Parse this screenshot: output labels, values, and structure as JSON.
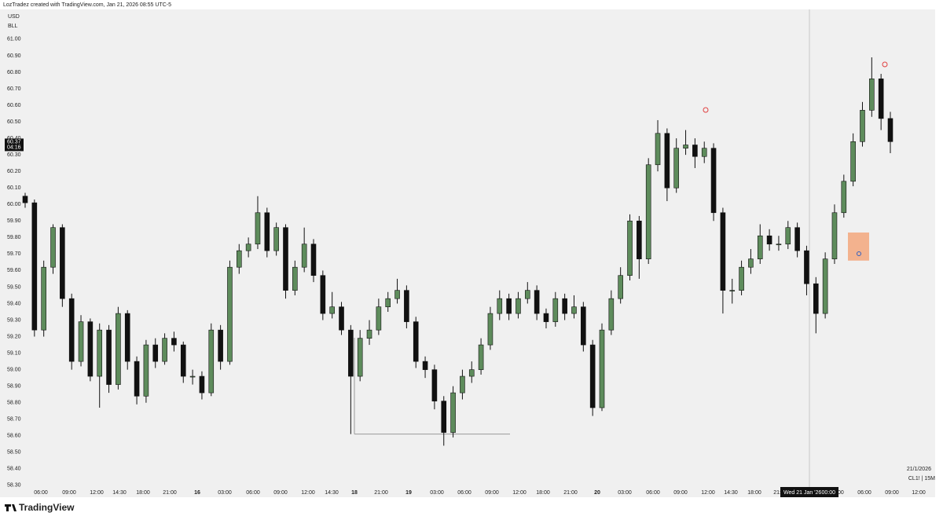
{
  "header": "LozTradez created with TradingView.com, Jan 21, 2026 08:55 UTC-5",
  "logo": "TradingView",
  "chart_data": {
    "type": "candlestick",
    "unit_top": "USD",
    "unit_bottom": "BLL",
    "symbol": "CL1! | 15M",
    "date": "21/1/2026",
    "crosshair_date": "Wed 21 Jan '26",
    "crosshair_time": "00:00",
    "last_price": 60.37,
    "countdown": "04:16",
    "level": 58.61,
    "zone": {
      "low": 59.66,
      "high": 59.83
    },
    "up_color": "#5e8c5c",
    "down_color": "#111111",
    "ylim": [
      58.29,
      61.18
    ],
    "yticks": [
      {
        "value": 58.3,
        "label": "58.30"
      },
      {
        "value": 58.4,
        "label": "58.40"
      },
      {
        "value": 58.5,
        "label": "58.50"
      },
      {
        "value": 58.6,
        "label": "58.60"
      },
      {
        "value": 58.7,
        "label": "58.70"
      },
      {
        "value": 58.8,
        "label": "58.80"
      },
      {
        "value": 58.9,
        "label": "58.90"
      },
      {
        "value": 59,
        "label": "59.00"
      },
      {
        "value": 59.1,
        "label": "59.10"
      },
      {
        "value": 59.2,
        "label": "59.20"
      },
      {
        "value": 59.3,
        "label": "59.30"
      },
      {
        "value": 59.4,
        "label": "59.40"
      },
      {
        "value": 59.5,
        "label": "59.50"
      },
      {
        "value": 59.6,
        "label": "59.60"
      },
      {
        "value": 59.7,
        "label": "59.70"
      },
      {
        "value": 59.8,
        "label": "59.80"
      },
      {
        "value": 59.9,
        "label": "59.90"
      },
      {
        "value": 60,
        "label": "60.00"
      },
      {
        "value": 60.1,
        "label": "60.10"
      },
      {
        "value": 60.2,
        "label": "60.20"
      },
      {
        "value": 60.3,
        "label": "60.30"
      },
      {
        "value": 60.4,
        "label": "60.40"
      },
      {
        "value": 60.5,
        "label": "60.50"
      },
      {
        "value": 60.6,
        "label": "60.60"
      },
      {
        "value": 60.7,
        "label": "60.70"
      },
      {
        "value": 60.8,
        "label": "60.80"
      },
      {
        "value": 60.9,
        "label": "60.90"
      },
      {
        "value": 61,
        "label": "61.00"
      }
    ],
    "time_labels": [
      "06:00",
      "09:00",
      "12:00",
      "14:30",
      "18:00",
      "21:00",
      "16",
      "03:00",
      "06:00",
      "09:00",
      "12:00",
      "14:30",
      "18",
      "21:00",
      "19",
      "03:00",
      "06:00",
      "09:00",
      "12:00",
      "18:00",
      "21:00",
      "20",
      "03:00",
      "06:00",
      "09:00",
      "12:00",
      "14:30",
      "18:00",
      "21:00",
      "03:00",
      "06:00",
      "09:00",
      "12:00"
    ],
    "ohlc": [
      [
        60.05,
        60.07,
        59.98,
        60.01
      ],
      [
        60.01,
        60.03,
        59.2,
        59.24
      ],
      [
        59.24,
        59.66,
        59.2,
        59.62
      ],
      [
        59.62,
        59.88,
        59.58,
        59.86
      ],
      [
        59.86,
        59.88,
        59.38,
        59.43
      ],
      [
        59.43,
        59.46,
        59.0,
        59.05
      ],
      [
        59.05,
        59.33,
        59.02,
        59.29
      ],
      [
        59.29,
        59.31,
        58.93,
        58.96
      ],
      [
        58.96,
        59.28,
        58.77,
        59.24
      ],
      [
        59.24,
        59.27,
        58.86,
        58.91
      ],
      [
        58.91,
        59.38,
        58.88,
        59.34
      ],
      [
        59.34,
        59.36,
        59.0,
        59.05
      ],
      [
        59.05,
        59.08,
        58.79,
        58.84
      ],
      [
        58.84,
        59.18,
        58.8,
        59.15
      ],
      [
        59.15,
        59.19,
        59.01,
        59.05
      ],
      [
        59.05,
        59.22,
        59.03,
        59.19
      ],
      [
        59.19,
        59.23,
        59.11,
        59.15
      ],
      [
        59.15,
        59.17,
        58.92,
        58.96
      ],
      [
        58.96,
        59.0,
        58.91,
        58.96
      ],
      [
        58.96,
        58.99,
        58.82,
        58.86
      ],
      [
        58.86,
        59.28,
        58.84,
        59.24
      ],
      [
        59.24,
        59.27,
        59.0,
        59.05
      ],
      [
        59.05,
        59.66,
        59.03,
        59.62
      ],
      [
        59.62,
        59.76,
        59.58,
        59.72
      ],
      [
        59.72,
        59.8,
        59.68,
        59.76
      ],
      [
        59.76,
        60.05,
        59.73,
        59.95
      ],
      [
        59.95,
        59.98,
        59.68,
        59.72
      ],
      [
        59.72,
        59.89,
        59.69,
        59.86
      ],
      [
        59.86,
        59.88,
        59.43,
        59.48
      ],
      [
        59.48,
        59.66,
        59.45,
        59.62
      ],
      [
        59.62,
        59.86,
        59.59,
        59.76
      ],
      [
        59.76,
        59.79,
        59.53,
        59.57
      ],
      [
        59.57,
        59.6,
        59.3,
        59.34
      ],
      [
        59.34,
        59.47,
        59.31,
        59.38
      ],
      [
        59.38,
        59.41,
        59.21,
        59.24
      ],
      [
        59.24,
        59.27,
        58.61,
        58.96
      ],
      [
        58.96,
        59.24,
        58.93,
        59.19
      ],
      [
        59.19,
        59.3,
        59.15,
        59.24
      ],
      [
        59.24,
        59.43,
        59.21,
        59.38
      ],
      [
        59.38,
        59.47,
        59.35,
        59.43
      ],
      [
        59.43,
        59.55,
        59.4,
        59.48
      ],
      [
        59.48,
        59.51,
        59.25,
        59.29
      ],
      [
        59.29,
        59.32,
        59.01,
        59.05
      ],
      [
        59.05,
        59.08,
        58.95,
        59.0
      ],
      [
        59.0,
        59.03,
        58.76,
        58.81
      ],
      [
        58.81,
        58.84,
        58.54,
        58.62
      ],
      [
        58.62,
        58.9,
        58.59,
        58.86
      ],
      [
        58.86,
        59.0,
        58.82,
        58.96
      ],
      [
        58.96,
        59.05,
        58.92,
        59.0
      ],
      [
        59.0,
        59.19,
        58.97,
        59.15
      ],
      [
        59.15,
        59.38,
        59.12,
        59.34
      ],
      [
        59.34,
        59.48,
        59.3,
        59.43
      ],
      [
        59.43,
        59.46,
        59.3,
        59.34
      ],
      [
        59.34,
        59.47,
        59.31,
        59.43
      ],
      [
        59.43,
        59.53,
        59.4,
        59.48
      ],
      [
        59.48,
        59.51,
        59.3,
        59.34
      ],
      [
        59.34,
        59.37,
        59.25,
        59.29
      ],
      [
        59.29,
        59.47,
        59.26,
        59.43
      ],
      [
        59.43,
        59.46,
        59.3,
        59.34
      ],
      [
        59.34,
        59.45,
        59.31,
        59.38
      ],
      [
        59.38,
        59.41,
        59.11,
        59.15
      ],
      [
        59.15,
        59.18,
        58.72,
        58.77
      ],
      [
        58.77,
        59.28,
        58.75,
        59.24
      ],
      [
        59.24,
        59.48,
        59.21,
        59.43
      ],
      [
        59.43,
        59.62,
        59.4,
        59.57
      ],
      [
        59.57,
        59.94,
        59.54,
        59.9
      ],
      [
        59.9,
        59.93,
        59.55,
        59.67
      ],
      [
        59.67,
        60.28,
        59.64,
        60.24
      ],
      [
        60.24,
        60.51,
        60.2,
        60.43
      ],
      [
        60.43,
        60.46,
        60.02,
        60.1
      ],
      [
        60.1,
        60.4,
        60.07,
        60.34
      ],
      [
        60.34,
        60.45,
        60.3,
        60.36
      ],
      [
        60.36,
        60.4,
        60.22,
        60.29
      ],
      [
        60.29,
        60.38,
        60.25,
        60.34
      ],
      [
        60.34,
        60.37,
        59.9,
        59.95
      ],
      [
        59.95,
        59.98,
        59.34,
        59.48
      ],
      [
        59.48,
        59.55,
        59.4,
        59.48
      ],
      [
        59.48,
        59.66,
        59.45,
        59.62
      ],
      [
        59.62,
        59.73,
        59.58,
        59.67
      ],
      [
        59.67,
        59.88,
        59.64,
        59.81
      ],
      [
        59.81,
        59.85,
        59.72,
        59.76
      ],
      [
        59.76,
        59.81,
        59.72,
        59.76
      ],
      [
        59.76,
        59.9,
        59.73,
        59.86
      ],
      [
        59.86,
        59.89,
        59.68,
        59.72
      ],
      [
        59.72,
        59.75,
        59.45,
        59.52
      ],
      [
        59.52,
        59.56,
        59.22,
        59.34
      ],
      [
        59.34,
        59.71,
        59.31,
        59.67
      ],
      [
        59.67,
        60.0,
        59.64,
        59.95
      ],
      [
        59.95,
        60.18,
        59.92,
        60.14
      ],
      [
        60.14,
        60.43,
        60.11,
        60.38
      ],
      [
        60.38,
        60.62,
        60.35,
        60.57
      ],
      [
        60.57,
        60.89,
        60.53,
        60.76
      ],
      [
        60.76,
        60.79,
        60.45,
        60.52
      ],
      [
        60.52,
        60.56,
        60.31,
        60.38
      ]
    ]
  }
}
